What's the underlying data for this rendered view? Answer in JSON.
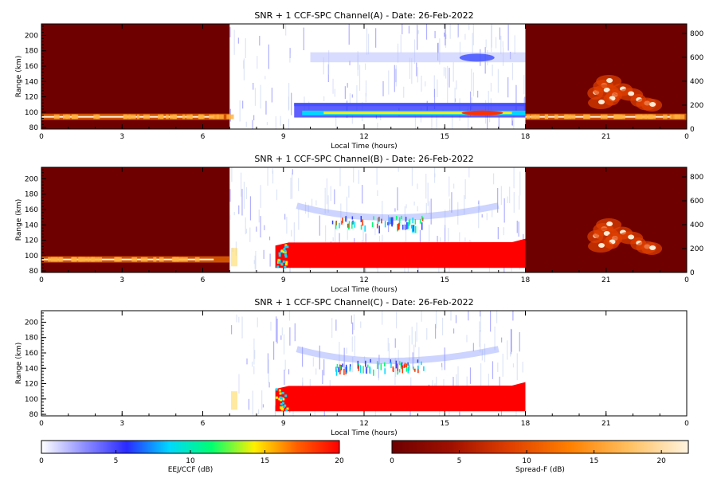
{
  "chart_data": [
    {
      "type": "heatmap",
      "title": "SNR + 1 CCF-SPC Channel(A) - Date: 26-Feb-2022",
      "xlabel": "Local Time (hours)",
      "ylabel": "Range (km)",
      "xlim": [
        0,
        24
      ],
      "x_ticks": [
        "0",
        "3",
        "6",
        "9",
        "12",
        "15",
        "18",
        "21",
        "0"
      ],
      "ylim": [
        78,
        215
      ],
      "y_ticks": [
        "80",
        "100",
        "120",
        "140",
        "160",
        "180",
        "200"
      ],
      "y2lim": [
        0,
        880
      ],
      "y2_ticks": [
        "0",
        "200",
        "400",
        "600",
        "800"
      ],
      "night_segments": [
        [
          0,
          7
        ],
        [
          18,
          24
        ]
      ],
      "day_segment": [
        7,
        18
      ],
      "features": {
        "night_layer": {
          "x": [
            0,
            7
          ],
          "y": [
            92,
            96
          ]
        },
        "night_layer_evening": {
          "x": [
            18,
            24
          ],
          "y": [
            92,
            96
          ]
        },
        "eej_main": {
          "x": [
            9.4,
            18
          ],
          "y": [
            93,
            112
          ],
          "peak_db": 20
        },
        "eej_upper_echo": {
          "x": [
            10,
            18
          ],
          "y": [
            165,
            178
          ],
          "peak_db": 8
        },
        "spread_f": {
          "x": [
            20.5,
            23
          ],
          "y2": [
            180,
            460
          ]
        }
      }
    },
    {
      "type": "heatmap",
      "title": "SNR + 1 CCF-SPC Channel(B) - Date: 26-Feb-2022",
      "xlabel": "Local Time (hours)",
      "ylabel": "Range (km)",
      "xlim": [
        0,
        24
      ],
      "x_ticks": [
        "0",
        "3",
        "6",
        "9",
        "12",
        "15",
        "18",
        "21",
        "0"
      ],
      "ylim": [
        78,
        215
      ],
      "y_ticks": [
        "80",
        "100",
        "120",
        "140",
        "160",
        "180",
        "200"
      ],
      "y2lim": [
        0,
        880
      ],
      "y2_ticks": [
        "0",
        "200",
        "400",
        "600",
        "800"
      ],
      "night_segments": [
        [
          0,
          7
        ],
        [
          18,
          24
        ]
      ],
      "day_segment": [
        7,
        18
      ],
      "features": {
        "night_layer": {
          "x": [
            0,
            7
          ],
          "y": [
            93,
            97
          ]
        },
        "eej_saturated": {
          "x": [
            8.7,
            18
          ],
          "y": [
            84,
            118
          ],
          "peak_db": 20
        },
        "arc_echo": {
          "x": [
            9.5,
            17
          ],
          "y": [
            138,
            165
          ],
          "peak_db": 10
        },
        "spread_f": {
          "x": [
            20.5,
            23
          ],
          "y2": [
            180,
            460
          ]
        }
      }
    },
    {
      "type": "heatmap",
      "title": "SNR + 1 CCF-SPC Channel(C) - Date: 26-Feb-2022",
      "xlabel": "Local Time (hours)",
      "ylabel": "Range (km)",
      "xlim": [
        0,
        24
      ],
      "x_ticks": [
        "0",
        "3",
        "6",
        "9",
        "12",
        "15",
        "18",
        "21",
        "0"
      ],
      "ylim": [
        78,
        215
      ],
      "y_ticks": [
        "80",
        "100",
        "120",
        "140",
        "160",
        "180",
        "200"
      ],
      "day_segment": [
        7,
        18
      ],
      "features": {
        "eej_saturated": {
          "x": [
            8.7,
            18
          ],
          "y": [
            84,
            118
          ],
          "peak_db": 20
        },
        "arc_echo": {
          "x": [
            9.5,
            17
          ],
          "y": [
            138,
            165
          ],
          "peak_db": 10
        }
      }
    }
  ],
  "colorbars": [
    {
      "label": "EEJ/CCF (dB)",
      "range": [
        0,
        20
      ],
      "ticks": [
        "0",
        "5",
        "10",
        "15",
        "20"
      ],
      "colors": [
        "#ffffff",
        "#8f8fff",
        "#2a2aff",
        "#00d8ff",
        "#00ff70",
        "#fff000",
        "#ff6000",
        "#ff0000"
      ]
    },
    {
      "label": "Spread-F (dB)",
      "range": [
        0,
        22
      ],
      "ticks": [
        "0",
        "5",
        "10",
        "15",
        "20"
      ],
      "colors": [
        "#6e0000",
        "#a01000",
        "#e04000",
        "#ff8000",
        "#ffc060",
        "#fff4e0"
      ]
    }
  ],
  "colors": {
    "night_background": "#6e0000",
    "eej_saturated": "#ff0000",
    "eej_blue": "#2a2aff",
    "eej_cyan": "#00d8ff",
    "eej_yellow": "#fff000"
  }
}
